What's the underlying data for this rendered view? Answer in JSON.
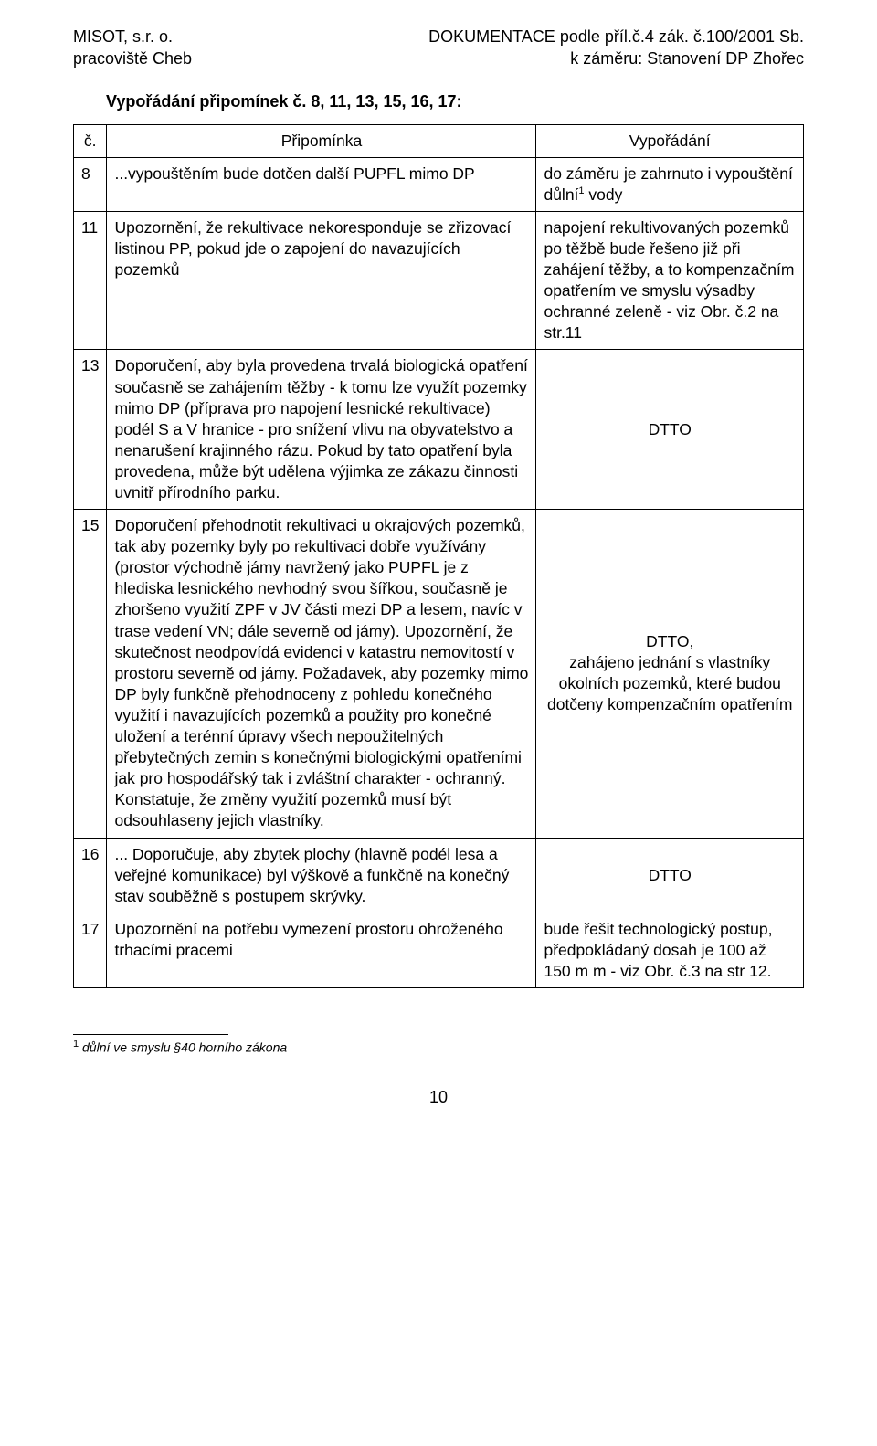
{
  "header": {
    "left_line1": "MISOT, s.r. o.",
    "left_line2": "pracoviště Cheb",
    "right_line1": "DOKUMENTACE podle příl.č.4 zák. č.100/2001 Sb.",
    "right_line2": "k záměru: Stanovení DP Zhořec"
  },
  "section_title": "Vypořádání připomínek č. 8, 11, 13, 15, 16, 17:",
  "table": {
    "headers": {
      "num": "č.",
      "comment": "Připomínka",
      "response": "Vypořádání"
    },
    "rows": [
      {
        "num": "8",
        "comment": "...vypouštěním bude dotčen další PUPFL mimo DP",
        "response_pre": "do záměru je zahrnuto i vypouštění důlní",
        "response_sup": "1",
        "response_post": " vody"
      },
      {
        "num": "11",
        "comment": "Upozornění, že rekultivace nekoresponduje se zřizovací listinou PP, pokud jde o zapojení do navazujících pozemků",
        "response": "napojení rekultivovaných pozemků po těžbě bude řešeno již při zahájení těžby, a to kompenzačním opatřením ve smyslu výsadby ochranné zeleně - viz Obr. č.2 na str.11"
      },
      {
        "num": "13",
        "comment": "Doporučení, aby byla provedena trvalá biologická opatření současně se zahájením těžby - k tomu lze využít pozemky mimo DP (příprava pro napojení lesnické rekultivace) podél S a V hranice - pro snížení vlivu na obyvatelstvo a nenarušení krajinného rázu. Pokud by tato opatření byla provedena, může být udělena výjimka ze zákazu činnosti uvnitř přírodního parku.",
        "response": "DTTO"
      },
      {
        "num": "15",
        "comment": "Doporučení přehodnotit rekultivaci u okrajových pozemků, tak aby pozemky byly po rekultivaci dobře využívány (prostor východně jámy navržený jako PUPFL je z hlediska lesnického nevhodný svou šířkou, současně je zhoršeno využití ZPF v JV části mezi DP a lesem, navíc v trase vedení VN; dále severně od jámy). Upozornění, že skutečnost neodpovídá evidenci v katastru nemovitostí v prostoru severně od jámy. Požadavek, aby pozemky mimo DP byly funkčně přehodnoceny z pohledu konečného využití i navazujících pozemků a použity pro konečné uložení a terénní úpravy všech nepoužitelných přebytečných zemin s konečnými biologickými opatřeními jak pro hospodářský tak i zvláštní charakter - ochranný. Konstatuje, že změny využití pozemků musí být odsouhlaseny jejich vlastníky.",
        "response": "DTTO,\nzahájeno jednání s vlastníky okolních pozemků, které budou dotčeny kompenzačním opatřením"
      },
      {
        "num": "16",
        "comment": "... Doporučuje, aby zbytek plochy (hlavně podél lesa a veřejné komunikace) byl výškově a funkčně na konečný stav souběžně s postupem skrývky.",
        "response": "DTTO"
      },
      {
        "num": "17",
        "comment": "Upozornění na potřebu vymezení prostoru ohroženého trhacími pracemi",
        "response": "bude řešit technologický postup, předpokládaný dosah je 100 až 150 m m - viz Obr. č.3 na str 12."
      }
    ]
  },
  "footnote": {
    "marker": "1",
    "text": " důlní ve smyslu §40 horního zákona"
  },
  "page_number": "10"
}
